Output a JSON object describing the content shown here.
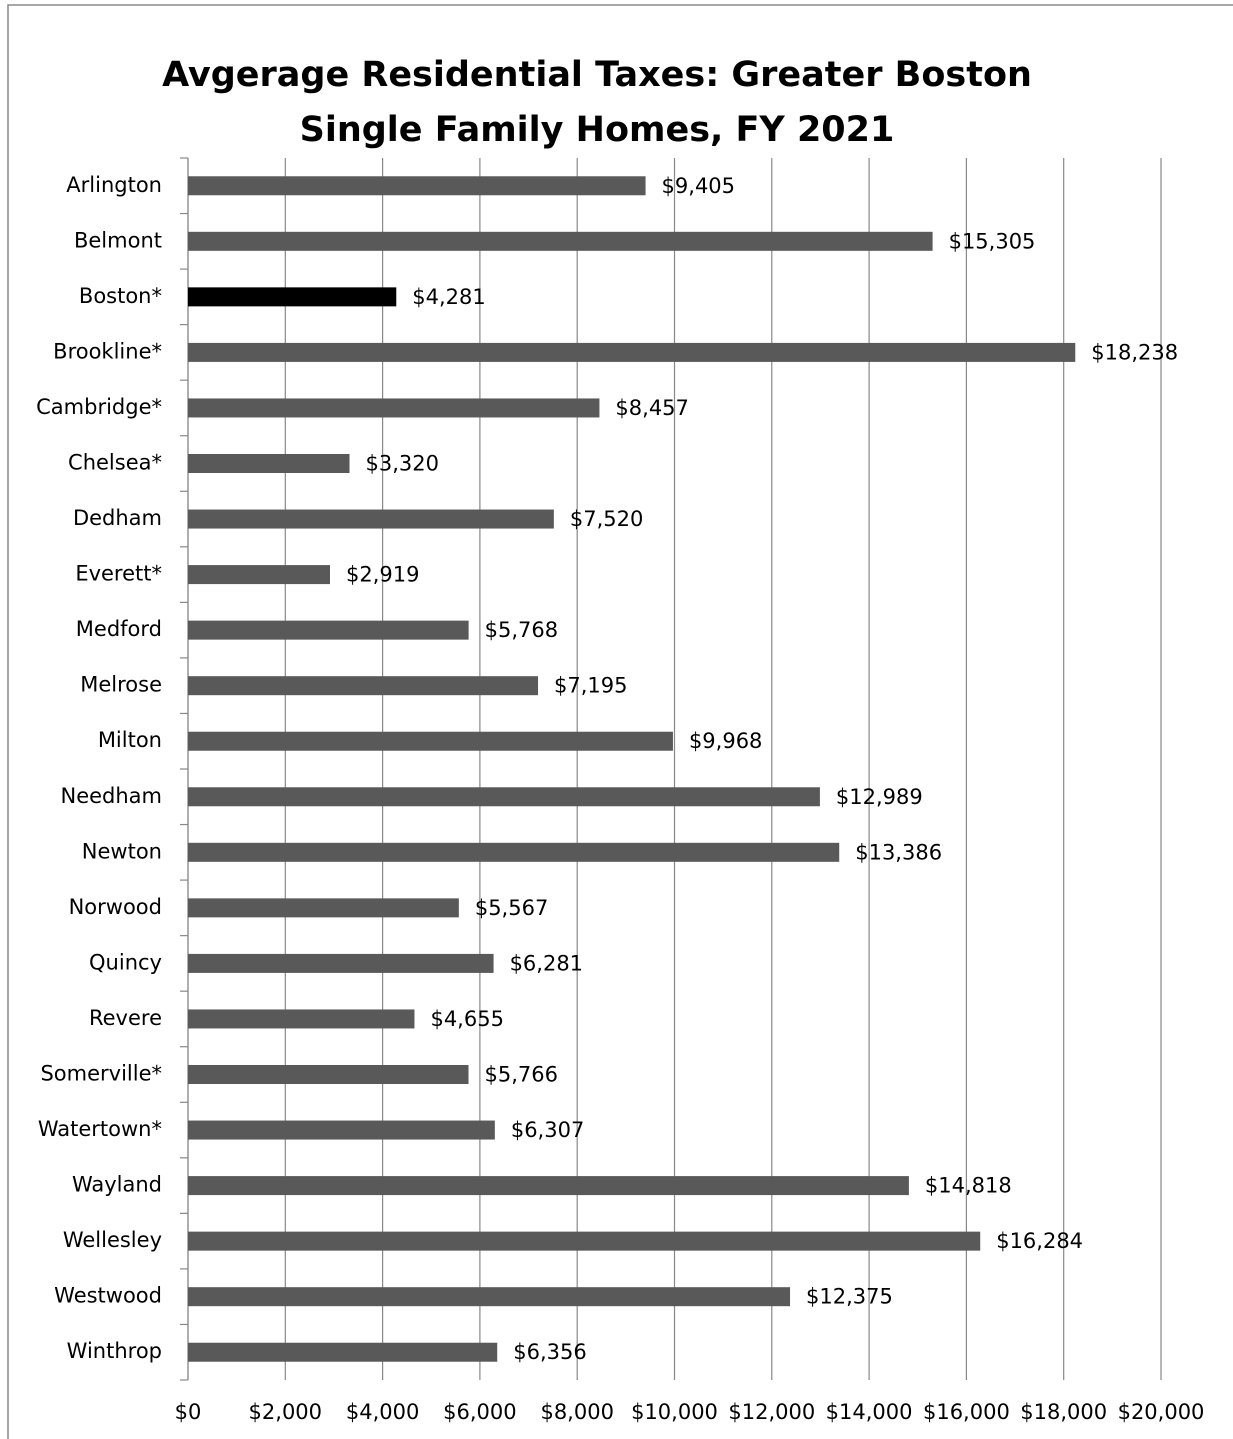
{
  "chart_data": {
    "type": "barh",
    "title": "Avgerage Residential Taxes: Greater Boston Single Family Homes, FY 2021",
    "categories": [
      "Arlington",
      "Belmont",
      "Boston*",
      "Brookline*",
      "Cambridge*",
      "Chelsea*",
      "Dedham",
      "Everett*",
      "Medford",
      "Melrose",
      "Milton",
      "Needham",
      "Newton",
      "Norwood",
      "Quincy",
      "Revere",
      "Somerville*",
      "Watertown*",
      "Wayland",
      "Wellesley",
      "Westwood",
      "Winthrop"
    ],
    "values": [
      9405,
      15305,
      4281,
      18238,
      8457,
      3320,
      7520,
      2919,
      5768,
      7195,
      9968,
      12989,
      13386,
      5567,
      6281,
      4655,
      5766,
      6307,
      14818,
      16284,
      12375,
      6356
    ],
    "value_labels": [
      "$9,405",
      "$15,305",
      "$4,281",
      "$18,238",
      "$8,457",
      "$3,320",
      "$7,520",
      "$2,919",
      "$5,768",
      "$7,195",
      "$9,968",
      "$12,989",
      "$13,386",
      "$5,567",
      "$6,281",
      "$4,655",
      "$5,766",
      "$6,307",
      "$14,818",
      "$16,284",
      "$12,375",
      "$6,356"
    ],
    "colors": [
      "#595959",
      "#595959",
      "#000000",
      "#595959",
      "#595959",
      "#595959",
      "#595959",
      "#595959",
      "#595959",
      "#595959",
      "#595959",
      "#595959",
      "#595959",
      "#595959",
      "#595959",
      "#595959",
      "#595959",
      "#595959",
      "#595959",
      "#595959",
      "#595959",
      "#595959"
    ],
    "xlim": [
      0,
      20000
    ],
    "xticks": [
      {
        "value": 0,
        "label": "$0"
      },
      {
        "value": 2000,
        "label": "$2,000"
      },
      {
        "value": 4000,
        "label": "$4,000"
      },
      {
        "value": 6000,
        "label": "$6,000"
      },
      {
        "value": 8000,
        "label": "$8,000"
      },
      {
        "value": 10000,
        "label": "$10,000"
      },
      {
        "value": 12000,
        "label": "$12,000"
      },
      {
        "value": 14000,
        "label": "$14,000"
      },
      {
        "value": 16000,
        "label": "$16,000"
      },
      {
        "value": 18000,
        "label": "$18,000"
      },
      {
        "value": 20000,
        "label": "$20,000"
      }
    ],
    "grid": true
  }
}
